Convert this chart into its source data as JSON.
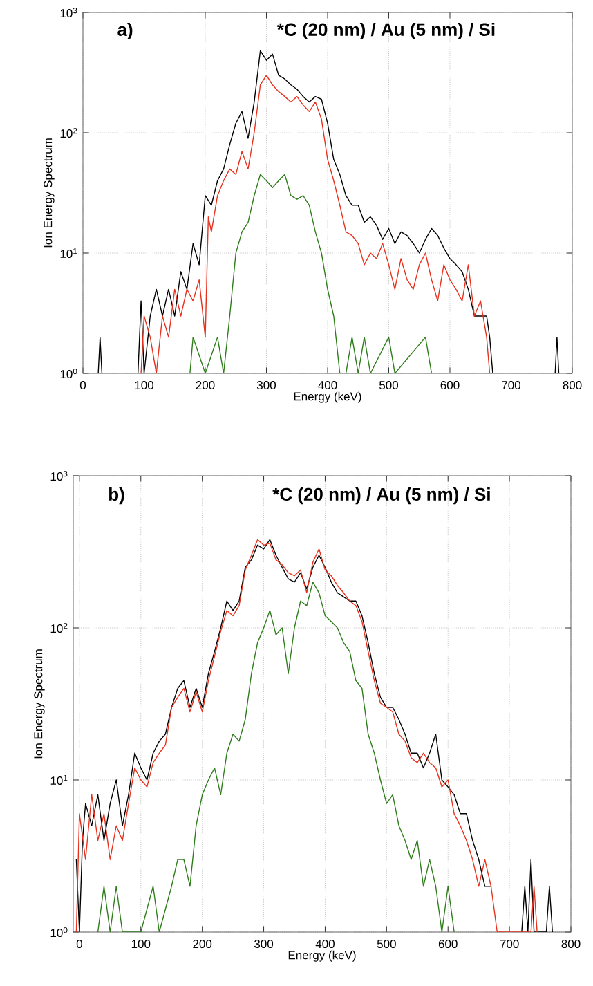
{
  "chart_data": [
    {
      "type": "line",
      "title": "*C (20 nm)  / Au (5 nm) / Si",
      "annotations": [
        "a)"
      ],
      "xlabel": "Energy (keV)",
      "ylabel": "Ion Energy Spectrum",
      "log": true,
      "grid": true,
      "xlim": [
        0,
        800
      ],
      "ylim": [
        1,
        1000
      ],
      "xticks": [
        0,
        100,
        200,
        300,
        400,
        500,
        600,
        700,
        800
      ],
      "yticks": [
        {
          "value": 1,
          "label": "10$^{0}$"
        },
        {
          "value": 10,
          "label": "10$^{1}$"
        },
        {
          "value": 100,
          "label": "10$^{2}$"
        },
        {
          "value": 1000,
          "label": "10$^{3}$"
        }
      ],
      "series": [
        {
          "color": "#000000",
          "x": [
            25,
            28,
            31,
            90,
            95,
            100,
            110,
            120,
            130,
            140,
            150,
            160,
            170,
            180,
            190,
            200,
            210,
            220,
            230,
            240,
            250,
            260,
            270,
            280,
            290,
            300,
            310,
            320,
            330,
            340,
            350,
            360,
            370,
            380,
            390,
            400,
            410,
            420,
            430,
            440,
            450,
            460,
            470,
            480,
            490,
            500,
            510,
            520,
            530,
            540,
            550,
            560,
            570,
            580,
            590,
            600,
            610,
            620,
            630,
            640,
            650,
            660,
            665,
            670,
            772,
            775,
            778
          ],
          "values": [
            1,
            2,
            1,
            1,
            4,
            1,
            3,
            5,
            3,
            5,
            3,
            7,
            5,
            12,
            8,
            30,
            25,
            40,
            50,
            80,
            120,
            150,
            90,
            180,
            480,
            400,
            450,
            300,
            280,
            250,
            230,
            200,
            180,
            200,
            190,
            120,
            60,
            45,
            30,
            25,
            25,
            18,
            20,
            17,
            13,
            16,
            12,
            15,
            14,
            12,
            10,
            13,
            16,
            14,
            11,
            9,
            8,
            7,
            5,
            3,
            3,
            3,
            2,
            1,
            1,
            2,
            1
          ]
        },
        {
          "color": "#e8301c",
          "x": [
            95,
            100,
            110,
            120,
            130,
            140,
            150,
            160,
            170,
            180,
            190,
            200,
            205,
            210,
            220,
            230,
            240,
            250,
            260,
            270,
            280,
            290,
            300,
            310,
            320,
            330,
            340,
            350,
            360,
            370,
            380,
            390,
            400,
            410,
            420,
            430,
            440,
            450,
            460,
            470,
            480,
            490,
            500,
            510,
            520,
            530,
            540,
            550,
            560,
            570,
            580,
            590,
            600,
            610,
            620,
            630,
            640,
            650,
            660,
            665
          ],
          "values": [
            1,
            3,
            2,
            1,
            3,
            2,
            5,
            3,
            5,
            4,
            6,
            2,
            20,
            15,
            30,
            40,
            50,
            45,
            70,
            50,
            100,
            250,
            300,
            250,
            220,
            200,
            180,
            200,
            170,
            150,
            180,
            130,
            60,
            40,
            25,
            15,
            14,
            12,
            8,
            10,
            9,
            12,
            8,
            5,
            9,
            6,
            5,
            8,
            10,
            6,
            4,
            8,
            6,
            5,
            4,
            8,
            3,
            4,
            2,
            1
          ]
        },
        {
          "color": "#2e7d1a",
          "x": [
            175,
            180,
            200,
            220,
            230,
            240,
            250,
            260,
            270,
            280,
            290,
            300,
            310,
            320,
            330,
            340,
            350,
            360,
            370,
            380,
            390,
            400,
            410,
            420,
            430,
            440,
            450,
            460,
            470,
            500,
            510,
            560,
            570
          ],
          "values": [
            1,
            2,
            1,
            2,
            1,
            3,
            10,
            15,
            18,
            30,
            45,
            40,
            35,
            40,
            45,
            30,
            28,
            30,
            25,
            15,
            10,
            5,
            3,
            1,
            1,
            2,
            1,
            2,
            1,
            2,
            1,
            2,
            1
          ]
        }
      ]
    },
    {
      "type": "line",
      "title": "*C (20 nm) / Au (5 nm) / Si",
      "annotations": [
        "b)"
      ],
      "xlabel": "Energy (keV)",
      "ylabel": "Ion Energy Spectrum",
      "log": true,
      "grid": true,
      "xlim": [
        -10,
        800
      ],
      "ylim": [
        1,
        1000
      ],
      "xticks": [
        0,
        100,
        200,
        300,
        400,
        500,
        600,
        700,
        800
      ],
      "yticks": [
        {
          "value": 1,
          "label": "10$^{0}$"
        },
        {
          "value": 10,
          "label": "10$^{1}$"
        },
        {
          "value": 100,
          "label": "10$^{2}$"
        },
        {
          "value": 1000,
          "label": "10$^{3}$"
        }
      ],
      "series": [
        {
          "color": "#000000",
          "x": [
            -5,
            0,
            5,
            10,
            20,
            30,
            40,
            50,
            60,
            70,
            80,
            90,
            100,
            110,
            120,
            130,
            140,
            150,
            160,
            170,
            180,
            190,
            200,
            210,
            220,
            230,
            240,
            250,
            260,
            270,
            280,
            290,
            300,
            310,
            320,
            330,
            340,
            350,
            360,
            370,
            380,
            390,
            400,
            410,
            420,
            430,
            440,
            450,
            460,
            470,
            480,
            490,
            500,
            510,
            520,
            530,
            540,
            550,
            560,
            570,
            580,
            590,
            600,
            610,
            620,
            630,
            640,
            650,
            660,
            670,
            680,
            690,
            720,
            725,
            730,
            735,
            740,
            760,
            765,
            770
          ],
          "values": [
            3,
            1,
            4,
            7,
            5,
            8,
            4,
            7,
            10,
            5,
            8,
            15,
            12,
            10,
            15,
            18,
            20,
            30,
            40,
            45,
            30,
            40,
            30,
            50,
            70,
            100,
            150,
            130,
            150,
            250,
            280,
            350,
            330,
            380,
            300,
            250,
            210,
            200,
            230,
            180,
            250,
            300,
            250,
            200,
            170,
            160,
            150,
            150,
            120,
            80,
            50,
            35,
            30,
            30,
            25,
            20,
            15,
            15,
            12,
            15,
            20,
            10,
            9,
            8,
            6,
            6,
            4,
            3,
            2,
            2,
            null,
            null,
            1,
            2,
            1,
            3,
            1,
            1,
            2,
            1
          ]
        },
        {
          "color": "#e8301c",
          "x": [
            -5,
            0,
            10,
            20,
            30,
            40,
            50,
            60,
            70,
            80,
            90,
            100,
            110,
            120,
            130,
            140,
            150,
            160,
            170,
            180,
            190,
            200,
            210,
            220,
            230,
            240,
            250,
            260,
            270,
            280,
            290,
            300,
            310,
            320,
            330,
            340,
            350,
            360,
            370,
            380,
            390,
            400,
            410,
            420,
            430,
            440,
            450,
            460,
            470,
            480,
            490,
            500,
            510,
            520,
            530,
            540,
            550,
            560,
            570,
            580,
            590,
            600,
            610,
            620,
            630,
            640,
            650,
            660,
            670,
            680,
            735,
            740,
            745
          ],
          "values": [
            1,
            6,
            3,
            8,
            4,
            6,
            3,
            5,
            4,
            7,
            12,
            10,
            9,
            13,
            15,
            17,
            30,
            35,
            40,
            28,
            38,
            28,
            45,
            65,
            95,
            130,
            120,
            140,
            240,
            300,
            380,
            350,
            360,
            280,
            260,
            230,
            220,
            240,
            170,
            270,
            330,
            240,
            220,
            190,
            170,
            150,
            140,
            110,
            70,
            45,
            32,
            30,
            28,
            20,
            18,
            14,
            13,
            15,
            13,
            12,
            9,
            10,
            6,
            5,
            4,
            3,
            2,
            3,
            2,
            1,
            1,
            2,
            1
          ]
        },
        {
          "color": "#2e7d1a",
          "x": [
            30,
            40,
            50,
            60,
            70,
            100,
            120,
            130,
            150,
            160,
            170,
            180,
            190,
            200,
            210,
            220,
            230,
            240,
            250,
            260,
            270,
            280,
            290,
            300,
            310,
            320,
            330,
            340,
            350,
            360,
            370,
            380,
            390,
            400,
            410,
            420,
            430,
            440,
            450,
            460,
            470,
            480,
            490,
            500,
            510,
            520,
            530,
            540,
            550,
            560,
            570,
            580,
            590,
            600,
            610
          ],
          "values": [
            1,
            2,
            1,
            2,
            1,
            1,
            2,
            1,
            2,
            3,
            3,
            2,
            5,
            8,
            10,
            12,
            8,
            15,
            20,
            18,
            25,
            50,
            80,
            100,
            130,
            90,
            100,
            50,
            100,
            150,
            140,
            200,
            170,
            120,
            110,
            100,
            80,
            70,
            45,
            40,
            20,
            15,
            10,
            7,
            8,
            5,
            4,
            3,
            4,
            2,
            3,
            2,
            1,
            2,
            1
          ]
        }
      ]
    }
  ]
}
